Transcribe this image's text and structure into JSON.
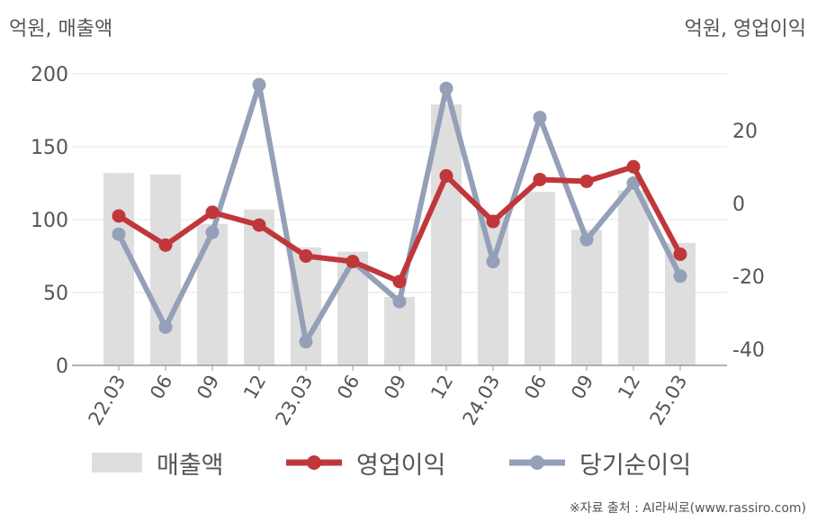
{
  "left_unit": "억원, 매출액",
  "right_unit": "억원, 영업이익",
  "source": "※자료 출처 : AI라씨로(www.rassiro.com)",
  "chart_data": {
    "type": "bar+line",
    "categories": [
      "22.03",
      "06",
      "09",
      "12",
      "23.03",
      "06",
      "09",
      "12",
      "24.03",
      "06",
      "09",
      "12",
      "25.03"
    ],
    "y_left": {
      "ticks": [
        0,
        50,
        100,
        150,
        200
      ],
      "range": [
        0,
        200
      ]
    },
    "y_right": {
      "ticks": [
        -40,
        -20,
        0,
        20
      ],
      "range": [
        -44.5,
        35.5
      ]
    },
    "grid": true,
    "legend_position": "bottom",
    "series": [
      {
        "name": "매출액",
        "type": "bar",
        "axis": "left",
        "color": "#dedede",
        "values": [
          132,
          131,
          97,
          107,
          81,
          78,
          47,
          179,
          102,
          119,
          93,
          120,
          84
        ]
      },
      {
        "name": "영업이익",
        "type": "line",
        "axis": "right",
        "color": "#c0373a",
        "values": [
          -3.5,
          -11.5,
          -2.5,
          -6,
          -14.5,
          -16,
          -21.5,
          7.5,
          -5,
          6.5,
          6,
          10,
          -14
        ]
      },
      {
        "name": "당기순이익",
        "type": "line",
        "axis": "right",
        "color": "#94a0b8",
        "values": [
          -8.5,
          -34,
          -8,
          32.5,
          -38,
          -16,
          -27,
          31.5,
          -16,
          23.5,
          -10,
          5.5,
          -20
        ]
      }
    ]
  }
}
